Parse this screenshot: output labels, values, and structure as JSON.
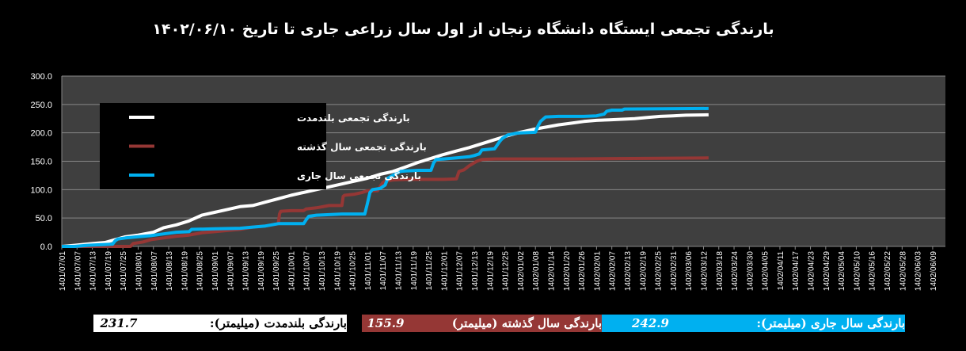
{
  "chart_data": {
    "type": "line",
    "title": "بارندگی تجمعی ایستگاه دانشگاه زنجان از اول سال زراعی جاری تا تاریخ ۱۴۰۲/۰۶/۱۰",
    "ylim": [
      0,
      300
    ],
    "y_ticks": [
      "0.0",
      "50.0",
      "100.0",
      "150.0",
      "200.0",
      "250.0",
      "300.0"
    ],
    "x_ticks": [
      "1401/07/01",
      "1401/07/07",
      "1401/07/13",
      "1401/07/19",
      "1401/07/25",
      "1401/08/01",
      "1401/08/07",
      "1401/08/13",
      "1401/08/19",
      "1401/08/25",
      "1401/09/01",
      "1401/09/07",
      "1401/09/13",
      "1401/09/19",
      "1401/09/25",
      "1401/10/01",
      "1401/10/07",
      "1401/10/13",
      "1401/10/19",
      "1401/10/25",
      "1401/11/01",
      "1401/11/07",
      "1401/11/13",
      "1401/11/19",
      "1401/11/25",
      "1401/12/01",
      "1401/12/07",
      "1401/12/13",
      "1401/12/19",
      "1401/12/25",
      "1402/01/02",
      "1402/01/08",
      "1402/01/14",
      "1402/01/20",
      "1402/01/26",
      "1402/02/01",
      "1402/02/07",
      "1402/02/13",
      "1402/02/19",
      "1402/02/25",
      "1402/02/31",
      "1402/03/06",
      "1402/03/12",
      "1402/03/18",
      "1402/03/24",
      "1402/03/30",
      "1402/04/05",
      "1402/04/11",
      "1402/04/17",
      "1402/04/23",
      "1402/04/29",
      "1402/05/04",
      "1402/05/10",
      "1402/05/16",
      "1402/05/22",
      "1402/05/28",
      "1402/06/03",
      "1402/06/09"
    ],
    "grid": true,
    "legend_position": "top-left",
    "series": [
      {
        "name": "بارندگی تجمعی بلندمدت",
        "color": "#ffffff",
        "points": [
          [
            0,
            0
          ],
          [
            5,
            2
          ],
          [
            12,
            5
          ],
          [
            17,
            7
          ],
          [
            21,
            12
          ],
          [
            25,
            17
          ],
          [
            30,
            20
          ],
          [
            36,
            25
          ],
          [
            40,
            33
          ],
          [
            45,
            38
          ],
          [
            50,
            45
          ],
          [
            55,
            55
          ],
          [
            60,
            60
          ],
          [
            65,
            65
          ],
          [
            70,
            70
          ],
          [
            75,
            72
          ],
          [
            80,
            78
          ],
          [
            85,
            84
          ],
          [
            90,
            90
          ],
          [
            95,
            95
          ],
          [
            100,
            100
          ],
          [
            105,
            105
          ],
          [
            110,
            110
          ],
          [
            115,
            115
          ],
          [
            120,
            120
          ],
          [
            125,
            127
          ],
          [
            130,
            132
          ],
          [
            135,
            140
          ],
          [
            140,
            148
          ],
          [
            145,
            155
          ],
          [
            150,
            162
          ],
          [
            155,
            168
          ],
          [
            160,
            174
          ],
          [
            165,
            181
          ],
          [
            170,
            188
          ],
          [
            175,
            195
          ],
          [
            180,
            201
          ],
          [
            185,
            206
          ],
          [
            190,
            210
          ],
          [
            195,
            214
          ],
          [
            200,
            217
          ],
          [
            205,
            220
          ],
          [
            210,
            222
          ],
          [
            215,
            223
          ],
          [
            220,
            224
          ],
          [
            225,
            225
          ],
          [
            230,
            227
          ],
          [
            235,
            229
          ],
          [
            240,
            230
          ],
          [
            245,
            231
          ],
          [
            250,
            231.5
          ],
          [
            254,
            231.7
          ]
        ]
      },
      {
        "name": "بارندگی تجمعی سال گذشته",
        "color": "#953735",
        "points": [
          [
            0,
            0
          ],
          [
            27,
            0
          ],
          [
            28,
            5
          ],
          [
            32,
            8
          ],
          [
            35,
            12
          ],
          [
            40,
            15
          ],
          [
            45,
            18
          ],
          [
            50,
            20
          ],
          [
            55,
            24
          ],
          [
            60,
            26
          ],
          [
            65,
            28
          ],
          [
            70,
            30
          ],
          [
            75,
            34
          ],
          [
            80,
            36
          ],
          [
            85,
            40
          ],
          [
            85.5,
            57
          ],
          [
            86,
            62
          ],
          [
            90,
            63
          ],
          [
            95,
            63
          ],
          [
            96,
            66
          ],
          [
            100,
            68
          ],
          [
            105,
            72
          ],
          [
            110,
            72
          ],
          [
            110.5,
            88
          ],
          [
            111,
            90
          ],
          [
            115,
            92
          ],
          [
            118,
            95
          ],
          [
            120,
            98
          ],
          [
            124,
            98
          ],
          [
            125,
            105
          ],
          [
            126,
            112
          ],
          [
            127,
            115
          ],
          [
            130,
            117
          ],
          [
            135,
            118
          ],
          [
            140,
            118
          ],
          [
            150,
            118
          ],
          [
            155,
            119
          ],
          [
            156,
            132
          ],
          [
            158,
            135
          ],
          [
            160,
            142
          ],
          [
            163,
            150
          ],
          [
            165,
            153
          ],
          [
            170,
            154
          ],
          [
            180,
            154
          ],
          [
            200,
            154
          ],
          [
            254,
            155.9
          ]
        ]
      },
      {
        "name": "بارندگی تجمعی سال جاری",
        "color": "#00b0f0",
        "points": [
          [
            0,
            0
          ],
          [
            5,
            0
          ],
          [
            10,
            2
          ],
          [
            15,
            3
          ],
          [
            20,
            4
          ],
          [
            21,
            10
          ],
          [
            22,
            13
          ],
          [
            25,
            15
          ],
          [
            30,
            17
          ],
          [
            35,
            19
          ],
          [
            40,
            22
          ],
          [
            45,
            25
          ],
          [
            50,
            26
          ],
          [
            51,
            30
          ],
          [
            60,
            31
          ],
          [
            70,
            32
          ],
          [
            75,
            34
          ],
          [
            80,
            36
          ],
          [
            85,
            40
          ],
          [
            90,
            40
          ],
          [
            95,
            40
          ],
          [
            96,
            47
          ],
          [
            97,
            53
          ],
          [
            100,
            55
          ],
          [
            105,
            56
          ],
          [
            110,
            57
          ],
          [
            115,
            57
          ],
          [
            119,
            57
          ],
          [
            120,
            75
          ],
          [
            121,
            95
          ],
          [
            122,
            100
          ],
          [
            125,
            102
          ],
          [
            127,
            108
          ],
          [
            128,
            120
          ],
          [
            130,
            125
          ],
          [
            133,
            132
          ],
          [
            135,
            133
          ],
          [
            140,
            134
          ],
          [
            145,
            134
          ],
          [
            146,
            147
          ],
          [
            147,
            153
          ],
          [
            150,
            154
          ],
          [
            155,
            156
          ],
          [
            160,
            158
          ],
          [
            162,
            160
          ],
          [
            164,
            163
          ],
          [
            165,
            170
          ],
          [
            170,
            172
          ],
          [
            172,
            185
          ],
          [
            173,
            190
          ],
          [
            175,
            196
          ],
          [
            178,
            199
          ],
          [
            180,
            200
          ],
          [
            186,
            201
          ],
          [
            187,
            212
          ],
          [
            188,
            220
          ],
          [
            190,
            228
          ],
          [
            195,
            229
          ],
          [
            200,
            229
          ],
          [
            205,
            229
          ],
          [
            210,
            230
          ],
          [
            213,
            233
          ],
          [
            214,
            238
          ],
          [
            216,
            240
          ],
          [
            220,
            240
          ],
          [
            221,
            242
          ],
          [
            254,
            242.9
          ]
        ]
      }
    ]
  },
  "legend": {
    "items": [
      {
        "label": "بارندگی تجمعی بلندمدت",
        "color": "#ffffff"
      },
      {
        "label": "بارندگی تجمعی سال گذشته",
        "color": "#953735"
      },
      {
        "label": "بارندگی تجمعی سال جاری",
        "color": "#00b0f0"
      }
    ]
  },
  "footer": {
    "current_label": "بارندگی سال جاری (میلیمتر):",
    "current_value": "242.9",
    "previous_label": "بارندگی سال گذشته (میلیمتر)",
    "previous_value": "155.9",
    "longterm_label": "بارندگی بلندمدت (میلیمتر):",
    "longterm_value": "231.7",
    "colors": {
      "current": "#00b0f0",
      "previous": "#953735",
      "longterm": "#ffffff"
    }
  }
}
